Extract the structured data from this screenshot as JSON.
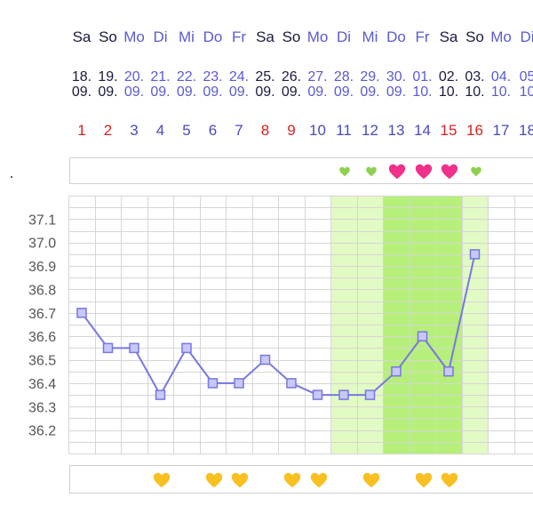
{
  "colors": {
    "weekday": "#5a5ad0",
    "weekend": "#1a1a40",
    "cycle_day": "#4a4ab8",
    "cycle_day_weekend": "#d82020",
    "line": "#7777e0",
    "marker_fill": "#c8c8f8",
    "fertile_light": "#e2fac4",
    "fertile_strong": "#b6ef7a",
    "heart_small": "#90d050",
    "heart_pink": "#f0308a",
    "heart_yellow": "#f8c020"
  },
  "header": {
    "weekdays": [
      "Sa",
      "So",
      "Mo",
      "Di",
      "Mi",
      "Do",
      "Fr",
      "Sa",
      "So",
      "Mo",
      "Di",
      "Mi",
      "Do",
      "Fr",
      "Sa",
      "So",
      "Mo",
      "Di"
    ],
    "days": [
      "18.",
      "19.",
      "20.",
      "21.",
      "22.",
      "23.",
      "24.",
      "25.",
      "26.",
      "27.",
      "28.",
      "29.",
      "30.",
      "01.",
      "02.",
      "03.",
      "04.",
      "05"
    ],
    "months": [
      "09.",
      "09.",
      "09.",
      "09.",
      "09.",
      "09.",
      "09.",
      "09.",
      "09.",
      "09.",
      "09.",
      "09.",
      "09.",
      "10.",
      "10.",
      "10.",
      "10.",
      "10"
    ],
    "cycle_days": [
      "1",
      "2",
      "3",
      "4",
      "5",
      "6",
      "7",
      "8",
      "9",
      "10",
      "11",
      "12",
      "13",
      "14",
      "15",
      "16",
      "17",
      "18"
    ],
    "weekend_flags": [
      true,
      true,
      false,
      false,
      false,
      false,
      false,
      true,
      true,
      false,
      false,
      false,
      false,
      false,
      true,
      true,
      false,
      false
    ]
  },
  "top_markers": [
    {
      "col": 10,
      "icon": "small-green-heart-icon"
    },
    {
      "col": 11,
      "icon": "small-green-heart-icon"
    },
    {
      "col": 12,
      "icon": "pink-heart-icon"
    },
    {
      "col": 13,
      "icon": "pink-heart-icon"
    },
    {
      "col": 14,
      "icon": "pink-heart-icon"
    },
    {
      "col": 15,
      "icon": "small-green-heart-icon"
    }
  ],
  "bottom_markers": [
    {
      "col": 3,
      "icon": "yellow-heart-icon"
    },
    {
      "col": 5,
      "icon": "yellow-heart-icon"
    },
    {
      "col": 6,
      "icon": "yellow-heart-icon"
    },
    {
      "col": 8,
      "icon": "yellow-heart-icon"
    },
    {
      "col": 9,
      "icon": "yellow-heart-icon"
    },
    {
      "col": 11,
      "icon": "yellow-heart-icon"
    },
    {
      "col": 13,
      "icon": "yellow-heart-icon"
    },
    {
      "col": 14,
      "icon": "yellow-heart-icon"
    }
  ],
  "chart_data": {
    "type": "line",
    "x": [
      "1",
      "2",
      "3",
      "4",
      "5",
      "6",
      "7",
      "8",
      "9",
      "10",
      "11",
      "12",
      "13",
      "14",
      "15",
      "16"
    ],
    "series": [
      {
        "values": [
          36.7,
          36.55,
          36.55,
          36.35,
          36.55,
          36.4,
          36.4,
          36.5,
          36.4,
          36.35,
          36.35,
          36.35,
          36.45,
          36.6,
          36.45,
          36.95
        ]
      }
    ],
    "yticks": [
      "37.1",
      "37.0",
      "36.9",
      "36.8",
      "36.7",
      "36.6",
      "36.5",
      "36.4",
      "36.3",
      "36.2"
    ],
    "ylim": [
      36.1,
      37.2
    ],
    "grid": true,
    "fertile_window": {
      "light_days": [
        11,
        12,
        16
      ],
      "strong_days": [
        13,
        14,
        15
      ]
    }
  }
}
